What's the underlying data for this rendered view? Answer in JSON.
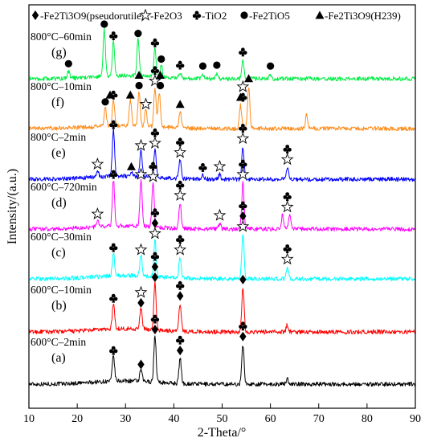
{
  "chart_data": {
    "type": "line",
    "title": "",
    "xlabel": "2-Theta/°",
    "ylabel": "Intensity/(a.u.)",
    "xlim": [
      10,
      90
    ],
    "xticks": [
      10,
      20,
      30,
      40,
      50,
      60,
      70,
      80,
      90
    ],
    "y_ticks_shown": false,
    "grid": false,
    "legend": {
      "placement": "top",
      "entries": [
        {
          "marker": "diamond",
          "label": "-Fe2Ti3O9(pseudorutile)"
        },
        {
          "marker": "star",
          "label": "-Fe2O3"
        },
        {
          "marker": "club",
          "label": "-TiO2"
        },
        {
          "marker": "circle",
          "label": "-Fe2TiO5"
        },
        {
          "marker": "triangle",
          "label": "-Fe2Ti3O9(H239)"
        }
      ]
    },
    "series": [
      {
        "id": "a",
        "letter": "(a)",
        "condition": "600°C–2min",
        "color": "#000000",
        "peaks": [
          {
            "x": 27.5,
            "h": 0.55
          },
          {
            "x": 33.2,
            "h": 0.25
          },
          {
            "x": 36.1,
            "h": 1.0
          },
          {
            "x": 41.3,
            "h": 0.55
          },
          {
            "x": 54.3,
            "h": 0.85
          },
          {
            "x": 63.5,
            "h": 0.12
          }
        ],
        "markers": [
          {
            "x": 27.5,
            "symbols": [
              "club"
            ]
          },
          {
            "x": 33.2,
            "symbols": [
              "diamond"
            ]
          },
          {
            "x": 36.1,
            "symbols": [
              "diamond",
              "club"
            ]
          },
          {
            "x": 41.3,
            "symbols": [
              "diamond",
              "club"
            ]
          },
          {
            "x": 54.3,
            "symbols": [
              "diamond",
              "club"
            ]
          }
        ]
      },
      {
        "id": "b",
        "letter": "(b)",
        "condition": "600°C–10min",
        "color": "#ff0000",
        "peaks": [
          {
            "x": 27.5,
            "h": 0.55
          },
          {
            "x": 33.2,
            "h": 0.45
          },
          {
            "x": 36.1,
            "h": 1.0
          },
          {
            "x": 41.3,
            "h": 0.6
          },
          {
            "x": 54.3,
            "h": 0.95
          },
          {
            "x": 63.5,
            "h": 0.15
          }
        ],
        "markers": [
          {
            "x": 27.5,
            "symbols": [
              "club"
            ]
          },
          {
            "x": 33.2,
            "symbols": [
              "diamond",
              "star"
            ]
          },
          {
            "x": 36.1,
            "symbols": [
              "diamond",
              "diamond",
              "club"
            ]
          },
          {
            "x": 41.3,
            "symbols": [
              "diamond",
              "club"
            ]
          },
          {
            "x": 54.3,
            "symbols": [
              "diamond"
            ]
          }
        ]
      },
      {
        "id": "c",
        "letter": "(c)",
        "condition": "600°C–30min",
        "color": "#00ffff",
        "peaks": [
          {
            "x": 27.5,
            "h": 0.5
          },
          {
            "x": 33.2,
            "h": 0.45
          },
          {
            "x": 36.1,
            "h": 0.8
          },
          {
            "x": 41.3,
            "h": 0.45
          },
          {
            "x": 54.3,
            "h": 0.95
          },
          {
            "x": 63.5,
            "h": 0.25
          }
        ],
        "markers": [
          {
            "x": 27.5,
            "symbols": [
              "club"
            ]
          },
          {
            "x": 33.2,
            "symbols": [
              "star"
            ]
          },
          {
            "x": 36.1,
            "symbols": [
              "star",
              "diamond",
              "club"
            ]
          },
          {
            "x": 41.3,
            "symbols": [
              "star",
              "club"
            ]
          },
          {
            "x": 54.3,
            "symbols": [
              "star",
              "diamond",
              "club"
            ]
          },
          {
            "x": 63.5,
            "symbols": [
              "star",
              "club"
            ]
          }
        ]
      },
      {
        "id": "d",
        "letter": "(d)",
        "condition": "600°C–720min",
        "color": "#ff00ff",
        "peaks": [
          {
            "x": 24.2,
            "h": 0.15
          },
          {
            "x": 27.5,
            "h": 1.0
          },
          {
            "x": 33.2,
            "h": 1.0
          },
          {
            "x": 35.7,
            "h": 0.95
          },
          {
            "x": 41.3,
            "h": 0.55
          },
          {
            "x": 49.5,
            "h": 0.12
          },
          {
            "x": 54.3,
            "h": 1.0
          },
          {
            "x": 62.5,
            "h": 0.3
          },
          {
            "x": 64.0,
            "h": 0.3
          }
        ],
        "markers": [
          {
            "x": 24.2,
            "symbols": [
              "star"
            ]
          },
          {
            "x": 27.5,
            "symbols": [
              "club"
            ]
          },
          {
            "x": 33.2,
            "symbols": [
              "star"
            ]
          },
          {
            "x": 35.7,
            "symbols": [
              "star",
              "club"
            ]
          },
          {
            "x": 41.3,
            "symbols": [
              "star",
              "club"
            ]
          },
          {
            "x": 49.5,
            "symbols": [
              "star"
            ]
          },
          {
            "x": 54.3,
            "symbols": [
              "star",
              "club"
            ]
          },
          {
            "x": 63.5,
            "symbols": [
              "star",
              "club"
            ]
          }
        ]
      },
      {
        "id": "e",
        "letter": "(e)",
        "condition": "800°C–2min",
        "color": "#0000ff",
        "peaks": [
          {
            "x": 24.2,
            "h": 0.15
          },
          {
            "x": 27.5,
            "h": 1.0
          },
          {
            "x": 31.2,
            "h": 0.1
          },
          {
            "x": 33.2,
            "h": 0.55
          },
          {
            "x": 36.1,
            "h": 0.6
          },
          {
            "x": 41.3,
            "h": 0.4
          },
          {
            "x": 46.0,
            "h": 0.08
          },
          {
            "x": 49.5,
            "h": 0.1
          },
          {
            "x": 54.3,
            "h": 0.7
          },
          {
            "x": 63.5,
            "h": 0.25
          }
        ],
        "markers": [
          {
            "x": 24.2,
            "symbols": [
              "star"
            ]
          },
          {
            "x": 27.5,
            "symbols": [
              "club"
            ]
          },
          {
            "x": 31.2,
            "symbols": [
              "triangle"
            ]
          },
          {
            "x": 33.2,
            "symbols": [
              "star"
            ]
          },
          {
            "x": 36.1,
            "symbols": [
              "star",
              "club"
            ]
          },
          {
            "x": 41.3,
            "symbols": [
              "star",
              "club"
            ]
          },
          {
            "x": 46.0,
            "symbols": [
              "club"
            ]
          },
          {
            "x": 49.5,
            "symbols": [
              "star"
            ]
          },
          {
            "x": 54.3,
            "symbols": [
              "star",
              "club"
            ]
          },
          {
            "x": 63.5,
            "symbols": [
              "star",
              "club"
            ]
          }
        ]
      },
      {
        "id": "f",
        "letter": "(f)",
        "condition": "800°C–10min",
        "color": "#ff8c1a",
        "peaks": [
          {
            "x": 25.8,
            "h": 0.4
          },
          {
            "x": 27.5,
            "h": 0.55
          },
          {
            "x": 31.0,
            "h": 0.55
          },
          {
            "x": 32.8,
            "h": 0.75
          },
          {
            "x": 34.2,
            "h": 0.35
          },
          {
            "x": 36.1,
            "h": 0.85
          },
          {
            "x": 37.0,
            "h": 0.75
          },
          {
            "x": 41.3,
            "h": 0.35
          },
          {
            "x": 53.8,
            "h": 0.5
          },
          {
            "x": 55.5,
            "h": 0.9
          },
          {
            "x": 67.5,
            "h": 0.3
          }
        ],
        "markers": [
          {
            "x": 25.8,
            "symbols": [
              "circle"
            ]
          },
          {
            "x": 26.8,
            "symbols": [
              "triangle"
            ]
          },
          {
            "x": 27.5,
            "symbols": [
              "club"
            ]
          },
          {
            "x": 31.0,
            "symbols": [
              "triangle"
            ]
          },
          {
            "x": 32.8,
            "symbols": [
              "circle",
              "triangle"
            ]
          },
          {
            "x": 34.2,
            "symbols": [
              "star"
            ]
          },
          {
            "x": 36.1,
            "symbols": [
              "star",
              "club"
            ]
          },
          {
            "x": 37.2,
            "symbols": [
              "circle",
              "triangle"
            ]
          },
          {
            "x": 41.3,
            "symbols": [
              "triangle"
            ]
          },
          {
            "x": 53.8,
            "symbols": [
              "triangle"
            ]
          },
          {
            "x": 54.3,
            "symbols": [
              "club",
              "star"
            ]
          },
          {
            "x": 55.5,
            "symbols": [
              "triangle"
            ]
          }
        ]
      },
      {
        "id": "g",
        "letter": "(g)",
        "condition": "800°C–60min",
        "color": "#00ee44",
        "peaks": [
          {
            "x": 18.2,
            "h": 0.15
          },
          {
            "x": 25.6,
            "h": 1.0
          },
          {
            "x": 27.5,
            "h": 0.75
          },
          {
            "x": 32.6,
            "h": 0.8
          },
          {
            "x": 36.1,
            "h": 0.6
          },
          {
            "x": 37.4,
            "h": 0.25
          },
          {
            "x": 41.3,
            "h": 0.12
          },
          {
            "x": 46.0,
            "h": 0.1
          },
          {
            "x": 48.9,
            "h": 0.12
          },
          {
            "x": 54.3,
            "h": 0.4
          },
          {
            "x": 60.0,
            "h": 0.1
          }
        ],
        "markers": [
          {
            "x": 18.2,
            "symbols": [
              "circle"
            ]
          },
          {
            "x": 25.6,
            "symbols": [
              "circle"
            ]
          },
          {
            "x": 27.5,
            "symbols": [
              "club"
            ]
          },
          {
            "x": 32.6,
            "symbols": [
              "circle"
            ]
          },
          {
            "x": 36.1,
            "symbols": [
              "club"
            ]
          },
          {
            "x": 37.4,
            "symbols": [
              "circle"
            ]
          },
          {
            "x": 41.3,
            "symbols": [
              "club"
            ]
          },
          {
            "x": 46.0,
            "symbols": [
              "circle"
            ]
          },
          {
            "x": 48.9,
            "symbols": [
              "circle"
            ]
          },
          {
            "x": 54.3,
            "symbols": [
              "club"
            ]
          },
          {
            "x": 60.0,
            "symbols": [
              "circle"
            ]
          }
        ]
      }
    ]
  }
}
